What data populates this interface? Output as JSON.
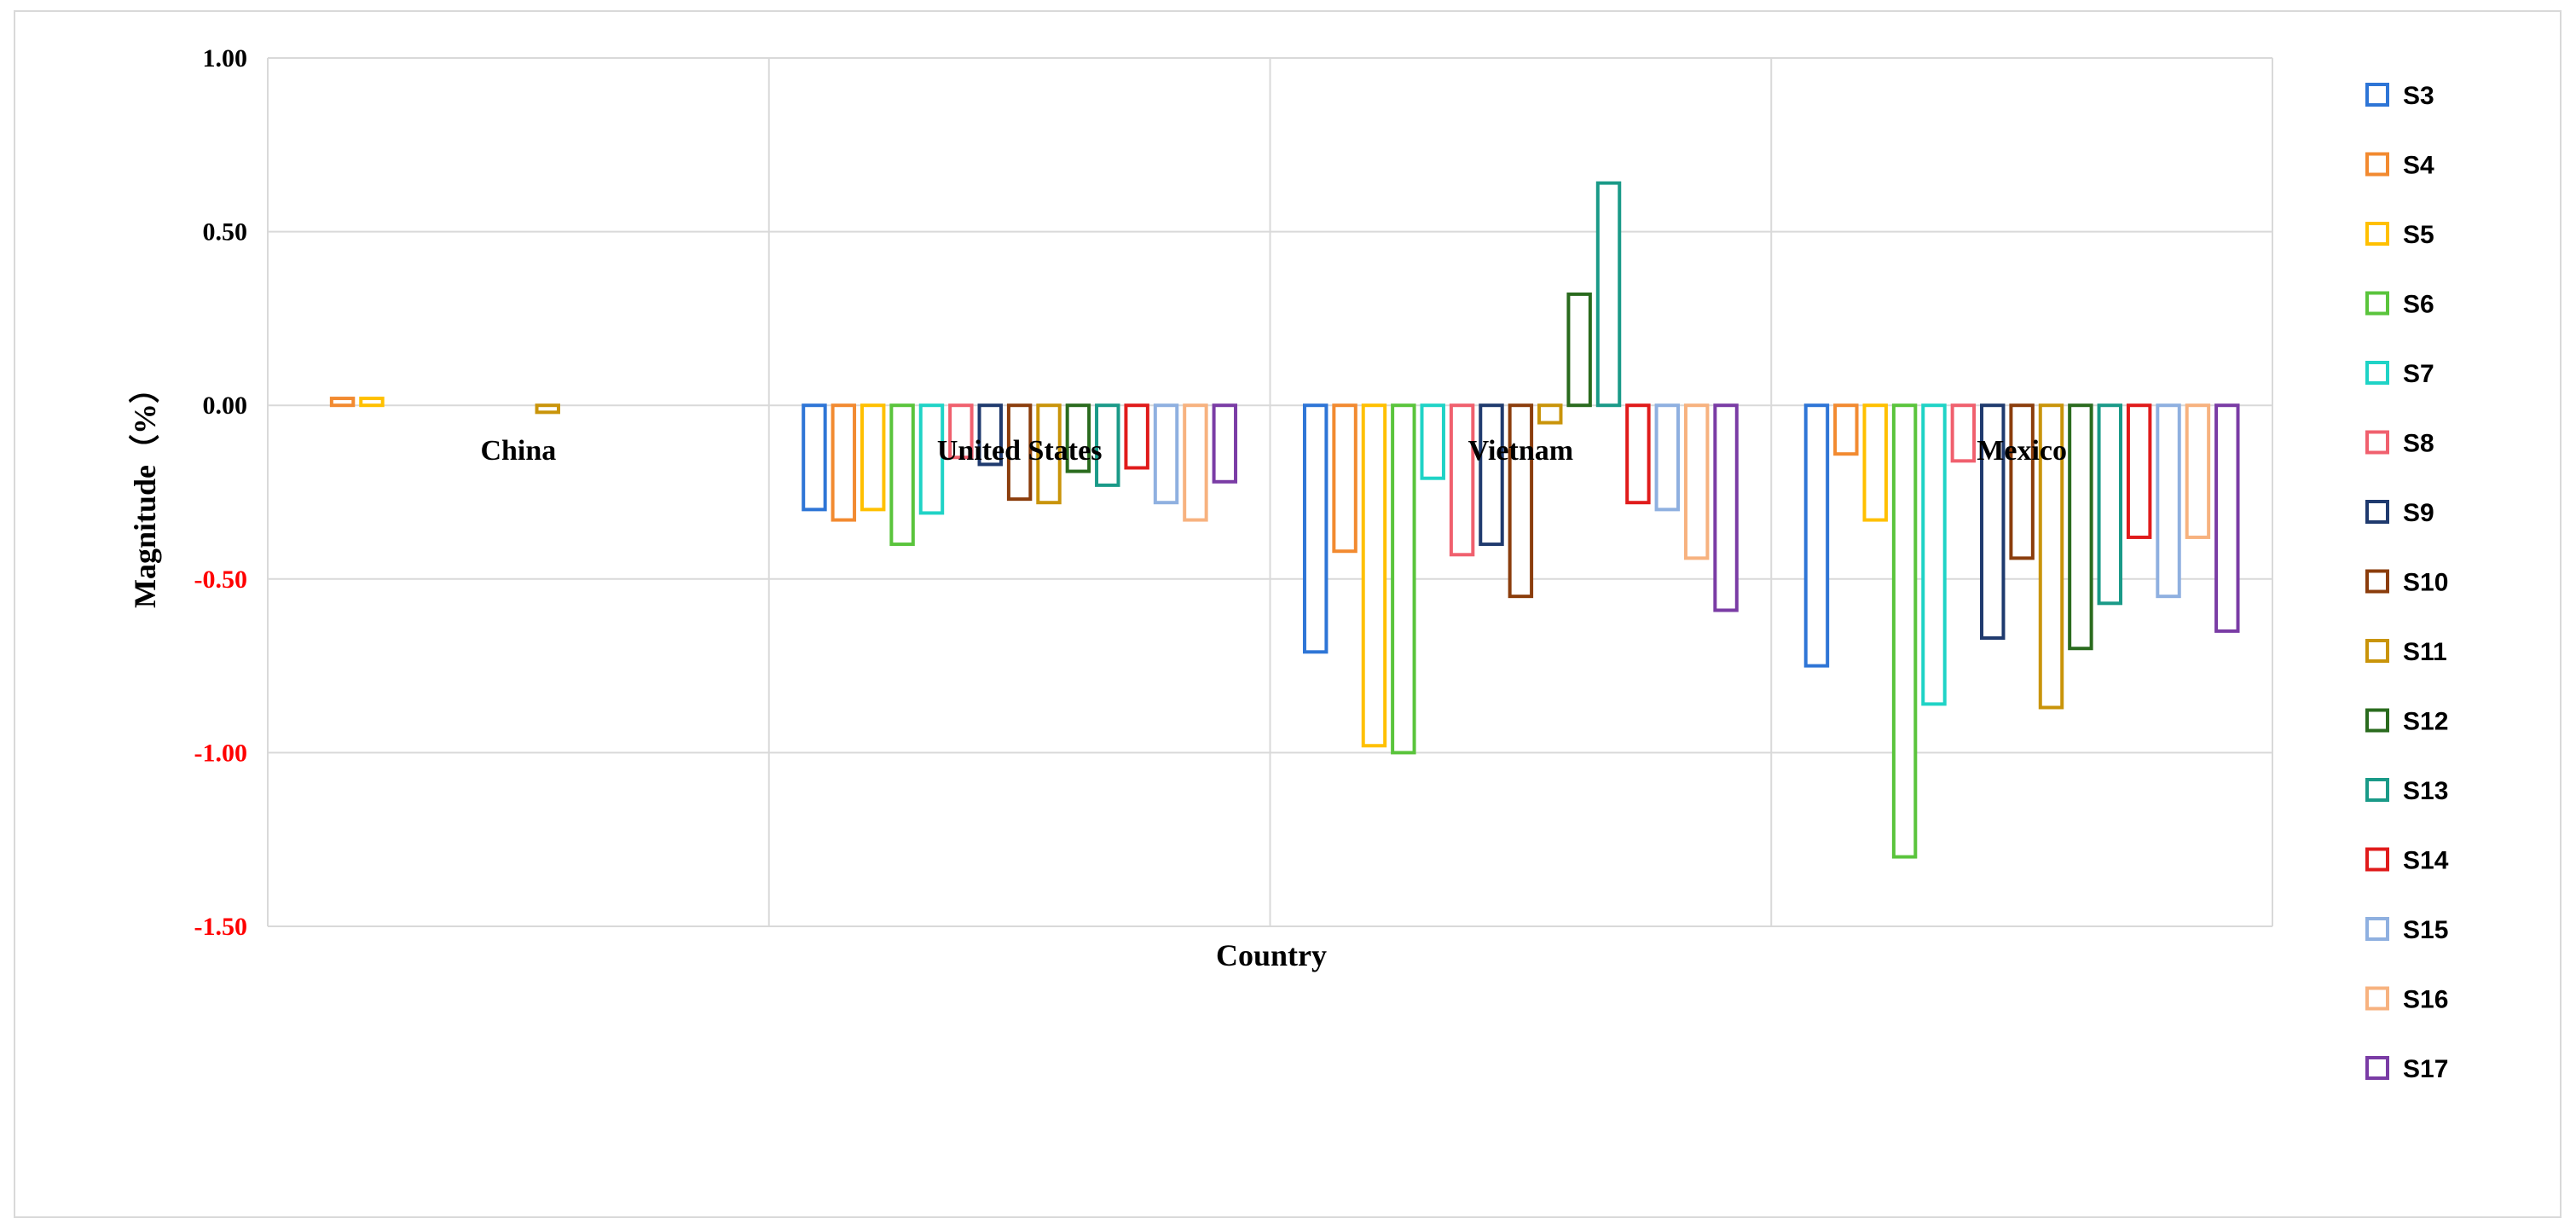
{
  "chart_data": {
    "type": "bar",
    "xlabel": "Country",
    "ylabel": "Magnitude（%）",
    "ylim": [
      -1.5,
      1.0
    ],
    "yticks": [
      1.0,
      0.5,
      0.0,
      -0.5,
      -1.0,
      -1.5
    ],
    "ytick_labels": [
      "1.00",
      "0.50",
      "0.00",
      "-0.50",
      "-1.00",
      "-1.50"
    ],
    "negative_tick_color": "#ff0000",
    "positive_tick_color": "#000000",
    "grid": true,
    "legend_position": "right",
    "bar_style": "outline",
    "categories": [
      "China",
      "United States",
      "Vietnam",
      "Mexico"
    ],
    "series": [
      {
        "name": "S3",
        "color": "#2e75d6",
        "values": [
          0,
          -0.3,
          -0.71,
          -0.75
        ]
      },
      {
        "name": "S4",
        "color": "#f28a30",
        "values": [
          0.02,
          -0.33,
          -0.42,
          -0.14
        ]
      },
      {
        "name": "S5",
        "color": "#ffc000",
        "values": [
          0.02,
          -0.3,
          -0.98,
          -0.33
        ]
      },
      {
        "name": "S6",
        "color": "#5ac43c",
        "values": [
          0,
          -0.4,
          -1.0,
          -1.3
        ]
      },
      {
        "name": "S7",
        "color": "#1fd3c6",
        "values": [
          0,
          -0.31,
          -0.21,
          -0.86
        ]
      },
      {
        "name": "S8",
        "color": "#f0606e",
        "values": [
          0,
          -0.15,
          -0.43,
          -0.16
        ]
      },
      {
        "name": "S9",
        "color": "#1f3a6e",
        "values": [
          0,
          -0.17,
          -0.4,
          -0.67
        ]
      },
      {
        "name": "S10",
        "color": "#8b3d0c",
        "values": [
          0,
          -0.27,
          -0.55,
          -0.44
        ]
      },
      {
        "name": "S11",
        "color": "#c9940a",
        "values": [
          -0.02,
          -0.28,
          -0.05,
          -0.87
        ]
      },
      {
        "name": "S12",
        "color": "#2a6b1e",
        "values": [
          0,
          -0.19,
          0.32,
          -0.7
        ]
      },
      {
        "name": "S13",
        "color": "#1a9a88",
        "values": [
          0,
          -0.23,
          0.64,
          -0.57
        ]
      },
      {
        "name": "S14",
        "color": "#e01b1b",
        "values": [
          0,
          -0.18,
          -0.28,
          -0.38
        ]
      },
      {
        "name": "S15",
        "color": "#8fb0e0",
        "values": [
          0,
          -0.28,
          -0.3,
          -0.55
        ]
      },
      {
        "name": "S16",
        "color": "#f7b27f",
        "values": [
          0,
          -0.33,
          -0.44,
          -0.38
        ]
      },
      {
        "name": "S17",
        "color": "#7a3ca5",
        "values": [
          0,
          -0.22,
          -0.59,
          -0.65
        ]
      }
    ]
  }
}
